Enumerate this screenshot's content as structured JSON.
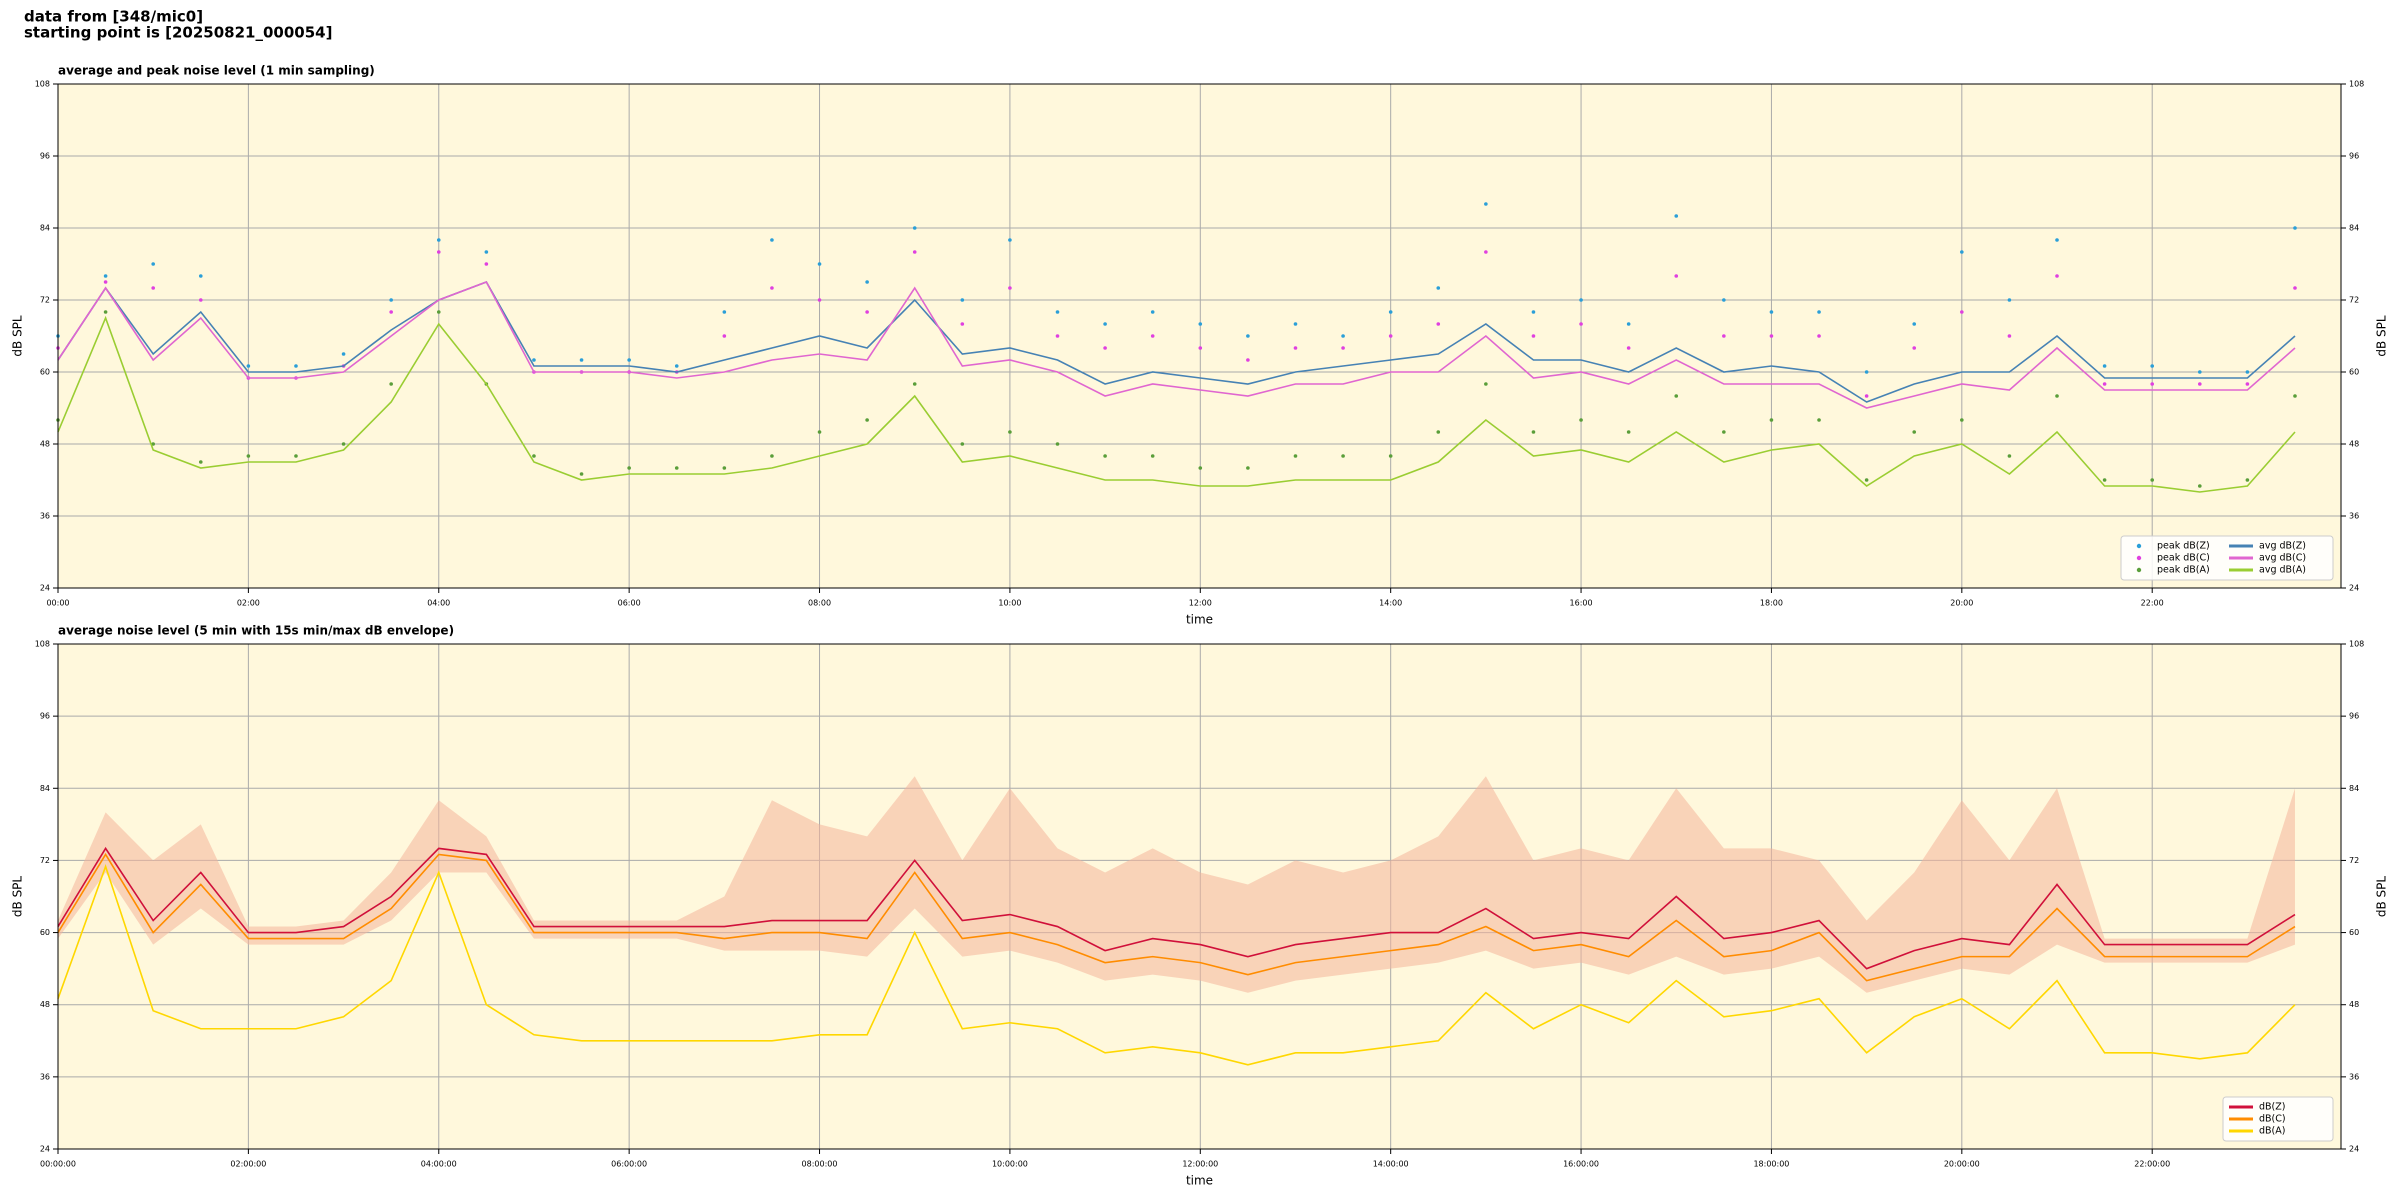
{
  "header": {
    "lines": [
      "data from [348/mic0]",
      "starting point is [20250821_000054]"
    ]
  },
  "chart_data": [
    {
      "type": "line",
      "title": "average and peak noise level (1 min sampling)",
      "xlabel": "time",
      "ylabel": "dB SPL",
      "background": "#fff8dc",
      "grid": true,
      "legend": "lower right",
      "legend_columns": 2,
      "x": [
        "00:00",
        "00:30",
        "01:00",
        "01:30",
        "02:00",
        "02:30",
        "03:00",
        "03:30",
        "04:00",
        "04:30",
        "05:00",
        "05:30",
        "06:00",
        "06:30",
        "07:00",
        "07:30",
        "08:00",
        "08:30",
        "09:00",
        "09:30",
        "10:00",
        "10:30",
        "11:00",
        "11:30",
        "12:00",
        "12:30",
        "13:00",
        "13:30",
        "14:00",
        "14:30",
        "15:00",
        "15:30",
        "16:00",
        "16:30",
        "17:00",
        "17:30",
        "18:00",
        "18:30",
        "19:00",
        "19:30",
        "20:00",
        "20:30",
        "21:00",
        "21:30",
        "22:00",
        "22:30",
        "23:00",
        "23:30"
      ],
      "xlim": [
        "00:00",
        "23:59"
      ],
      "xticks": [
        "00:00",
        "02:00",
        "04:00",
        "06:00",
        "08:00",
        "10:00",
        "12:00",
        "14:00",
        "16:00",
        "18:00",
        "20:00",
        "22:00"
      ],
      "ylim": [
        24,
        108
      ],
      "yticks": [
        24,
        36,
        48,
        60,
        72,
        84,
        96,
        108
      ],
      "series": [
        {
          "name": "peak dB(Z)",
          "style": "scatter",
          "color": "#2a9fd8",
          "values": [
            66,
            76,
            78,
            76,
            61,
            61,
            63,
            72,
            82,
            80,
            62,
            62,
            62,
            61,
            70,
            82,
            78,
            75,
            84,
            72,
            82,
            70,
            68,
            70,
            68,
            66,
            68,
            66,
            70,
            74,
            88,
            70,
            72,
            68,
            86,
            72,
            70,
            70,
            60,
            68,
            80,
            72,
            82,
            61,
            61,
            60,
            60,
            84
          ]
        },
        {
          "name": "peak dB(C)",
          "style": "scatter",
          "color": "#e040e0",
          "values": [
            64,
            75,
            74,
            72,
            59,
            59,
            61,
            70,
            80,
            78,
            60,
            60,
            60,
            60,
            66,
            74,
            72,
            70,
            80,
            68,
            74,
            66,
            64,
            66,
            64,
            62,
            64,
            64,
            66,
            68,
            80,
            66,
            68,
            64,
            76,
            66,
            66,
            66,
            56,
            64,
            70,
            66,
            76,
            58,
            58,
            58,
            58,
            74
          ]
        },
        {
          "name": "peak dB(A)",
          "style": "scatter",
          "color": "#5a9e3a",
          "values": [
            52,
            70,
            48,
            45,
            46,
            46,
            48,
            58,
            70,
            58,
            46,
            43,
            44,
            44,
            44,
            46,
            50,
            52,
            58,
            48,
            50,
            48,
            46,
            46,
            44,
            44,
            46,
            46,
            46,
            50,
            58,
            50,
            52,
            50,
            56,
            50,
            52,
            52,
            42,
            50,
            52,
            46,
            56,
            42,
            42,
            41,
            42,
            56
          ]
        },
        {
          "name": "avg dB(Z)",
          "style": "line",
          "color": "#4682b4",
          "values": [
            62,
            74,
            63,
            70,
            60,
            60,
            61,
            67,
            72,
            75,
            61,
            61,
            61,
            60,
            62,
            64,
            66,
            64,
            72,
            63,
            64,
            62,
            58,
            60,
            59,
            58,
            60,
            61,
            62,
            63,
            68,
            62,
            62,
            60,
            64,
            60,
            61,
            60,
            55,
            58,
            60,
            60,
            66,
            59,
            59,
            59,
            59,
            66
          ]
        },
        {
          "name": "avg dB(C)",
          "style": "line",
          "color": "#e066d0",
          "values": [
            62,
            74,
            62,
            69,
            59,
            59,
            60,
            66,
            72,
            75,
            60,
            60,
            60,
            59,
            60,
            62,
            63,
            62,
            74,
            61,
            62,
            60,
            56,
            58,
            57,
            56,
            58,
            58,
            60,
            60,
            66,
            59,
            60,
            58,
            62,
            58,
            58,
            58,
            54,
            56,
            58,
            57,
            64,
            57,
            57,
            57,
            57,
            64
          ]
        },
        {
          "name": "avg dB(A)",
          "style": "line",
          "color": "#9acd32",
          "values": [
            50,
            69,
            47,
            44,
            45,
            45,
            47,
            55,
            68,
            58,
            45,
            42,
            43,
            43,
            43,
            44,
            46,
            48,
            56,
            45,
            46,
            44,
            42,
            42,
            41,
            41,
            42,
            42,
            42,
            45,
            52,
            46,
            47,
            45,
            50,
            45,
            47,
            48,
            41,
            46,
            48,
            43,
            50,
            41,
            41,
            40,
            41,
            50
          ]
        }
      ]
    },
    {
      "type": "line",
      "title": "average noise level (5 min with 15s min/max dB envelope)",
      "xlabel": "time",
      "ylabel": "dB SPL",
      "background": "#fff8dc",
      "grid": true,
      "legend": "lower right",
      "legend_columns": 1,
      "x": [
        "00:00",
        "00:30",
        "01:00",
        "01:30",
        "02:00",
        "02:30",
        "03:00",
        "03:30",
        "04:00",
        "04:30",
        "05:00",
        "05:30",
        "06:00",
        "06:30",
        "07:00",
        "07:30",
        "08:00",
        "08:30",
        "09:00",
        "09:30",
        "10:00",
        "10:30",
        "11:00",
        "11:30",
        "12:00",
        "12:30",
        "13:00",
        "13:30",
        "14:00",
        "14:30",
        "15:00",
        "15:30",
        "16:00",
        "16:30",
        "17:00",
        "17:30",
        "18:00",
        "18:30",
        "19:00",
        "19:30",
        "20:00",
        "20:30",
        "21:00",
        "21:30",
        "22:00",
        "22:30",
        "23:00",
        "23:30"
      ],
      "xlim": [
        "00:00",
        "23:59"
      ],
      "xticks": [
        "00:00:00",
        "02:00:00",
        "04:00:00",
        "06:00:00",
        "08:00:00",
        "10:00:00",
        "12:00:00",
        "14:00:00",
        "16:00:00",
        "18:00:00",
        "20:00:00",
        "22:00:00"
      ],
      "ylim": [
        24,
        108
      ],
      "yticks": [
        24,
        36,
        48,
        60,
        72,
        84,
        96,
        108
      ],
      "band": {
        "color": "#f4b49a",
        "upper": [
          62,
          80,
          72,
          78,
          61,
          61,
          62,
          70,
          82,
          76,
          62,
          62,
          62,
          62,
          66,
          82,
          78,
          76,
          86,
          72,
          84,
          74,
          70,
          74,
          70,
          68,
          72,
          70,
          72,
          76,
          86,
          72,
          74,
          72,
          84,
          74,
          74,
          72,
          62,
          70,
          82,
          72,
          84,
          59,
          59,
          59,
          59,
          84
        ],
        "lower": [
          59,
          70,
          58,
          64,
          58,
          58,
          58,
          62,
          70,
          70,
          59,
          59,
          59,
          59,
          57,
          57,
          57,
          56,
          64,
          56,
          57,
          55,
          52,
          53,
          52,
          50,
          52,
          53,
          54,
          55,
          57,
          54,
          55,
          53,
          56,
          53,
          54,
          56,
          50,
          52,
          54,
          53,
          58,
          55,
          55,
          55,
          55,
          58
        ]
      },
      "series": [
        {
          "name": "dB(Z)",
          "style": "line",
          "color": "#d0103a",
          "values": [
            61,
            74,
            62,
            70,
            60,
            60,
            61,
            66,
            74,
            73,
            61,
            61,
            61,
            61,
            61,
            62,
            62,
            62,
            72,
            62,
            63,
            61,
            57,
            59,
            58,
            56,
            58,
            59,
            60,
            60,
            64,
            59,
            60,
            59,
            66,
            59,
            60,
            62,
            54,
            57,
            59,
            58,
            68,
            58,
            58,
            58,
            58,
            63
          ]
        },
        {
          "name": "dB(C)",
          "style": "line",
          "color": "#ff8c00",
          "values": [
            60,
            73,
            60,
            68,
            59,
            59,
            59,
            64,
            73,
            72,
            60,
            60,
            60,
            60,
            59,
            60,
            60,
            59,
            70,
            59,
            60,
            58,
            55,
            56,
            55,
            53,
            55,
            56,
            57,
            58,
            61,
            57,
            58,
            56,
            62,
            56,
            57,
            60,
            52,
            54,
            56,
            56,
            64,
            56,
            56,
            56,
            56,
            61
          ]
        },
        {
          "name": "dB(A)",
          "style": "line",
          "color": "#ffd700",
          "values": [
            49,
            71,
            47,
            44,
            44,
            44,
            46,
            52,
            70,
            48,
            43,
            42,
            42,
            42,
            42,
            42,
            43,
            43,
            60,
            44,
            45,
            44,
            40,
            41,
            40,
            38,
            40,
            40,
            41,
            42,
            50,
            44,
            48,
            45,
            52,
            46,
            47,
            49,
            40,
            46,
            49,
            44,
            52,
            40,
            40,
            39,
            40,
            48
          ]
        }
      ]
    }
  ]
}
